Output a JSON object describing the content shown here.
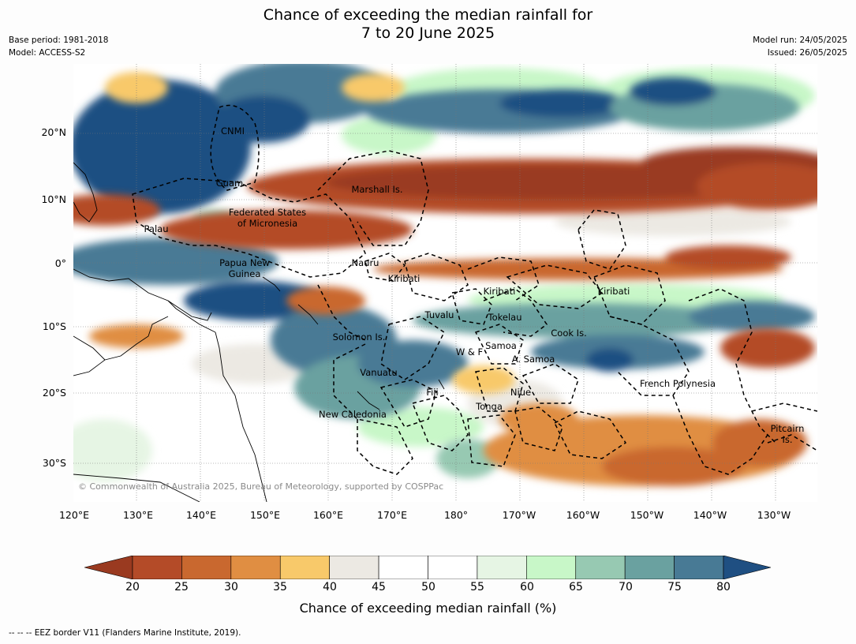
{
  "title": {
    "line1": "Chance of exceeding the median rainfall for",
    "line2": "7 to 20 June 2025"
  },
  "meta": {
    "base_period": "Base period: 1981-2018",
    "model": "Model: ACCESS-S2",
    "model_run": "Model run: 24/05/2025",
    "issued": "Issued: 26/05/2025"
  },
  "axes": {
    "lat_labels": [
      "20°N",
      "10°N",
      "0°",
      "10°S",
      "20°S",
      "30°S"
    ],
    "lon_labels": [
      "120°E",
      "130°E",
      "140°E",
      "150°E",
      "160°E",
      "170°E",
      "180°",
      "170°W",
      "160°W",
      "150°W",
      "140°W",
      "130°W"
    ]
  },
  "regions": {
    "cnmi": "CNMI",
    "guam": "Guam",
    "marshall": "Marshall Is.",
    "fsm1": "Federated States",
    "fsm2": "of Micronesia",
    "palau": "Palau",
    "png1": "Papua New",
    "png2": "Guinea",
    "nauru": "Nauru",
    "kiribati_w": "Kiribati",
    "kiribati_c": "Kiribati",
    "kiribati_e": "Kiribati",
    "tuvalu": "Tuvalu",
    "tokelau": "Tokelau",
    "cook": "Cook Is.",
    "solomon": "Solomon Is.",
    "wf": "W & F",
    "samoa": "Samoa",
    "asamoa": "A. Samoa",
    "vanuatu": "Vanuatu",
    "fiji": "Fiji",
    "niue": "Niue",
    "tonga": "Tonga",
    "newcal": "New Caledonia",
    "fpoly": "French Polynesia",
    "pitcairn1": "Pitcairn",
    "pitcairn2": "Is."
  },
  "copyright": "© Commonwealth of Australia 2025, Bureau of Meteorology, supported by COSPPac",
  "colorbar": {
    "label": "Chance of exceeding median rainfall (%)",
    "ticks": [
      "20",
      "25",
      "30",
      "35",
      "40",
      "45",
      "50",
      "55",
      "60",
      "65",
      "70",
      "75",
      "80"
    ],
    "colors": [
      "#9a3a20",
      "#b44b28",
      "#c9682f",
      "#e08e42",
      "#f8c96a",
      "#ece9e3",
      "#ffffff",
      "#ffffff",
      "#e6f5e4",
      "#c8f7c8",
      "#97c9b2",
      "#6aa1a0",
      "#487a95",
      "#1f4f82"
    ]
  },
  "footnote": "--  --  -- EEZ border V11 (Flanders Marine Institute, 2019)."
}
